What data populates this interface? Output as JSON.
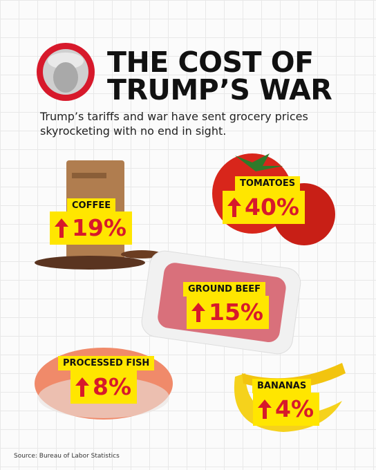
{
  "header": {
    "title_lines": [
      "THE COST OF",
      "TRUMP’S WAR"
    ],
    "subtitle": "Trump’s tariffs and war have sent grocery prices skyrocketing with no end in sight."
  },
  "items": [
    {
      "label": "COFFEE",
      "change": "19%"
    },
    {
      "label": "TOMATOES",
      "change": "40%"
    },
    {
      "label": "GROUND BEEF",
      "change": "15%"
    },
    {
      "label": "PROCESSED FISH",
      "change": "8%"
    },
    {
      "label": "BANANAS",
      "change": "4%"
    }
  ],
  "source": "Source: Bureau of Labor Statistics"
}
